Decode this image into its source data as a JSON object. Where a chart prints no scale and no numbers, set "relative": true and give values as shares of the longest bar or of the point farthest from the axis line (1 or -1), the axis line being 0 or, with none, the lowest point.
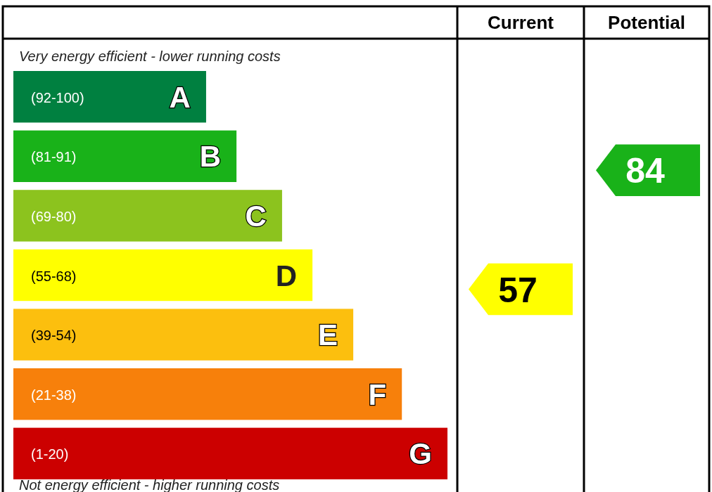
{
  "chart_data": {
    "type": "bar",
    "orientation": "horizontal",
    "relative": true,
    "categories": [
      "A",
      "B",
      "C",
      "D",
      "E",
      "F",
      "G"
    ],
    "values": [
      0.444,
      0.514,
      0.619,
      0.689,
      0.783,
      0.895,
      1
    ],
    "colors": [
      "#008040",
      "#19b219",
      "#8cc31e",
      "#ffff00",
      "#fcbf0e",
      "#f7800b",
      "#cc0000"
    ],
    "annotations": [
      "Very energy efficient - lower running costs",
      "Not energy efficient - higher running costs",
      "Current",
      "Potential",
      "57",
      "84",
      "(92-100)",
      "(81-91)",
      "(69-80)",
      "(55-68)",
      "(39-54)",
      "(21-38)",
      "(1-20)"
    ]
  }
}
